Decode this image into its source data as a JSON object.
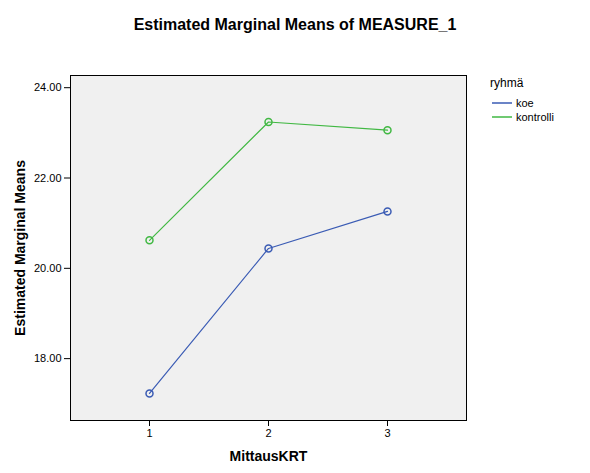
{
  "chart_data": {
    "type": "line",
    "title": "Estimated Marginal Means of MEASURE_1",
    "x_label": "MittausKRT",
    "y_label": "Estimated Marginal Means",
    "legend_title": "ryhmä",
    "categories": [
      "1",
      "2",
      "3"
    ],
    "series": [
      {
        "name": "koe",
        "color": "#3a5bb4",
        "values": [
          17.23,
          20.44,
          21.26
        ]
      },
      {
        "name": "kontrolli",
        "color": "#41b843",
        "values": [
          20.62,
          23.24,
          23.06
        ]
      }
    ],
    "ylim": [
      16.63,
      24.27
    ],
    "yticks": [
      {
        "value": 18,
        "label": "18.00"
      },
      {
        "value": 20,
        "label": "20.00"
      },
      {
        "value": 22,
        "label": "22.00"
      },
      {
        "value": 24,
        "label": "24.00"
      }
    ],
    "marker": "circle",
    "legend": "top-right"
  }
}
